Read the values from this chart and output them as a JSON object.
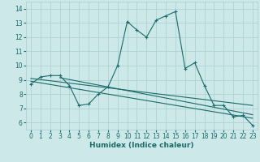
{
  "xlabel": "Humidex (Indice chaleur)",
  "ylabel": "",
  "xlim": [
    -0.5,
    23.5
  ],
  "ylim": [
    5.5,
    14.5
  ],
  "yticks": [
    6,
    7,
    8,
    9,
    10,
    11,
    12,
    13,
    14
  ],
  "xticks": [
    0,
    1,
    2,
    3,
    4,
    5,
    6,
    7,
    8,
    9,
    10,
    11,
    12,
    13,
    14,
    15,
    16,
    17,
    18,
    19,
    20,
    21,
    22,
    23
  ],
  "bg_color": "#cce8e8",
  "line_color": "#1a6b6b",
  "grid_color": "#aacece",
  "main_x": [
    0,
    1,
    2,
    3,
    4,
    5,
    6,
    7,
    8,
    9,
    10,
    11,
    12,
    13,
    14,
    15,
    16,
    17,
    18,
    19,
    20,
    21,
    22,
    23
  ],
  "main_y": [
    8.7,
    9.2,
    9.3,
    9.3,
    8.6,
    7.2,
    7.3,
    8.0,
    8.5,
    10.0,
    13.1,
    12.5,
    12.0,
    13.2,
    13.5,
    13.8,
    9.8,
    10.2,
    8.6,
    7.2,
    7.2,
    6.4,
    6.5,
    5.8
  ],
  "trend1_x": [
    0,
    23
  ],
  "trend1_y": [
    9.1,
    7.2
  ],
  "trend2_x": [
    0,
    23
  ],
  "trend2_y": [
    8.9,
    6.3
  ],
  "trend3_x": [
    3,
    23
  ],
  "trend3_y": [
    9.15,
    6.55
  ]
}
